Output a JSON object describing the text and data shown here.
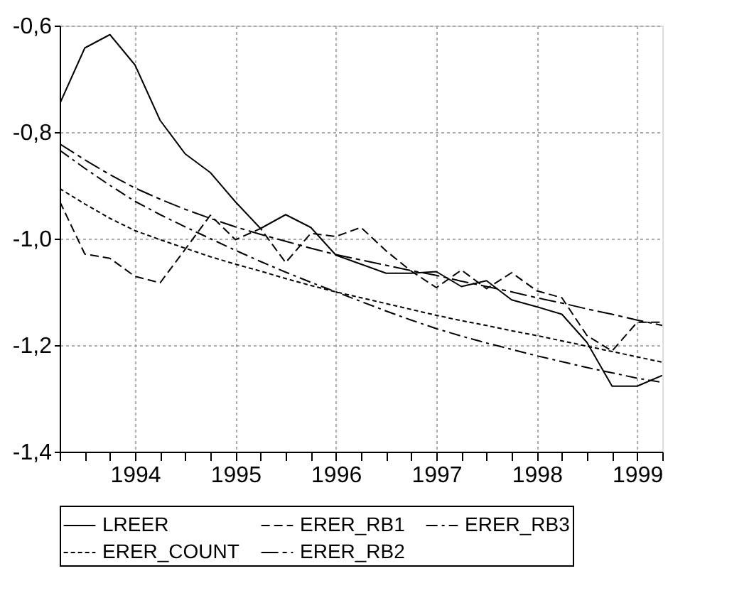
{
  "chart_data": {
    "type": "line",
    "x": [
      1993.25,
      1993.5,
      1993.75,
      1994,
      1994.25,
      1994.5,
      1994.75,
      1995,
      1995.25,
      1995.5,
      1995.75,
      1996,
      1996.25,
      1996.5,
      1996.75,
      1997,
      1997.25,
      1997.5,
      1997.75,
      1998,
      1998.25,
      1998.5,
      1998.75,
      1999,
      1999.25
    ],
    "series": [
      {
        "name": "LREER",
        "color": "#000000",
        "line_style": "solid",
        "values": [
          -0.747,
          -0.642,
          -0.617,
          -0.674,
          -0.778,
          -0.841,
          -0.876,
          -0.931,
          -0.981,
          -0.955,
          -0.979,
          -1.031,
          -1.048,
          -1.065,
          -1.065,
          -1.062,
          -1.09,
          -1.079,
          -1.115,
          -1.128,
          -1.142,
          -1.195,
          -1.277,
          -1.277,
          -1.257
        ]
      },
      {
        "name": "ERER_RB1",
        "color": "#000000",
        "line_style": "dashed",
        "values": [
          -0.93,
          -1.029,
          -1.037,
          -1.071,
          -1.083,
          -1.02,
          -0.956,
          -1.002,
          -0.981,
          -1.045,
          -0.99,
          -0.996,
          -0.979,
          -1.023,
          -1.061,
          -1.092,
          -1.059,
          -1.094,
          -1.064,
          -1.098,
          -1.111,
          -1.182,
          -1.211,
          -1.157,
          -1.157
        ]
      },
      {
        "name": "ERER_RB3",
        "color": "#000000",
        "line_style": "dashed",
        "values": [
          -0.834,
          -0.868,
          -0.9,
          -0.93,
          -0.955,
          -0.978,
          -1.0,
          -1.022,
          -1.043,
          -1.063,
          -1.082,
          -1.1,
          -1.118,
          -1.136,
          -1.153,
          -1.169,
          -1.183,
          -1.196,
          -1.208,
          -1.22,
          -1.231,
          -1.242,
          -1.252,
          -1.262,
          -1.27
        ]
      },
      {
        "name": "ERER_COUNT",
        "color": "#000000",
        "line_style": "dotted",
        "values": [
          -0.906,
          -0.935,
          -0.962,
          -0.985,
          -1.002,
          -1.018,
          -1.034,
          -1.048,
          -1.061,
          -1.075,
          -1.088,
          -1.1,
          -1.111,
          -1.122,
          -1.133,
          -1.144,
          -1.154,
          -1.163,
          -1.173,
          -1.182,
          -1.192,
          -1.202,
          -1.212,
          -1.222,
          -1.232
        ]
      },
      {
        "name": "ERER_RB2",
        "color": "#000000",
        "line_style": "dashed",
        "values": [
          -0.822,
          -0.852,
          -0.88,
          -0.905,
          -0.926,
          -0.945,
          -0.962,
          -0.978,
          -0.992,
          -1.005,
          -1.018,
          -1.03,
          -1.04,
          -1.05,
          -1.06,
          -1.069,
          -1.08,
          -1.09,
          -1.1,
          -1.111,
          -1.121,
          -1.132,
          -1.142,
          -1.153,
          -1.163
        ]
      }
    ],
    "xlim": [
      1993.25,
      1999.25
    ],
    "xticks": [
      {
        "value": 1993.25,
        "label": null
      },
      {
        "value": 1993.5,
        "label": null
      },
      {
        "value": 1993.75,
        "label": null
      },
      1994,
      {
        "value": 1994.25,
        "label": null
      },
      {
        "value": 1994.5,
        "label": null
      },
      {
        "value": 1994.75,
        "label": null
      },
      1995,
      {
        "value": 1995.25,
        "label": null
      },
      {
        "value": 1995.5,
        "label": null
      },
      {
        "value": 1995.75,
        "label": null
      },
      1996,
      {
        "value": 1996.25,
        "label": null
      },
      {
        "value": 1996.5,
        "label": null
      },
      {
        "value": 1996.75,
        "label": null
      },
      1997,
      {
        "value": 1997.25,
        "label": null
      },
      {
        "value": 1997.5,
        "label": null
      },
      {
        "value": 1997.75,
        "label": null
      },
      1998,
      {
        "value": 1998.25,
        "label": null
      },
      {
        "value": 1998.5,
        "label": null
      },
      {
        "value": 1998.75,
        "label": null
      },
      1999,
      {
        "value": 1999.25,
        "label": null
      }
    ],
    "ylim": [
      -1.4,
      -0.6
    ],
    "yticks": [
      {
        "value": -1.4,
        "label": "-1,4"
      },
      {
        "value": -1.2,
        "label": "-1,2"
      },
      {
        "value": -1.0,
        "label": "-1,0"
      },
      {
        "value": -0.8,
        "label": "-0,8"
      },
      {
        "value": -0.6,
        "label": "-0,6"
      }
    ],
    "grid": true,
    "legend": "bottom",
    "marker": "none"
  }
}
